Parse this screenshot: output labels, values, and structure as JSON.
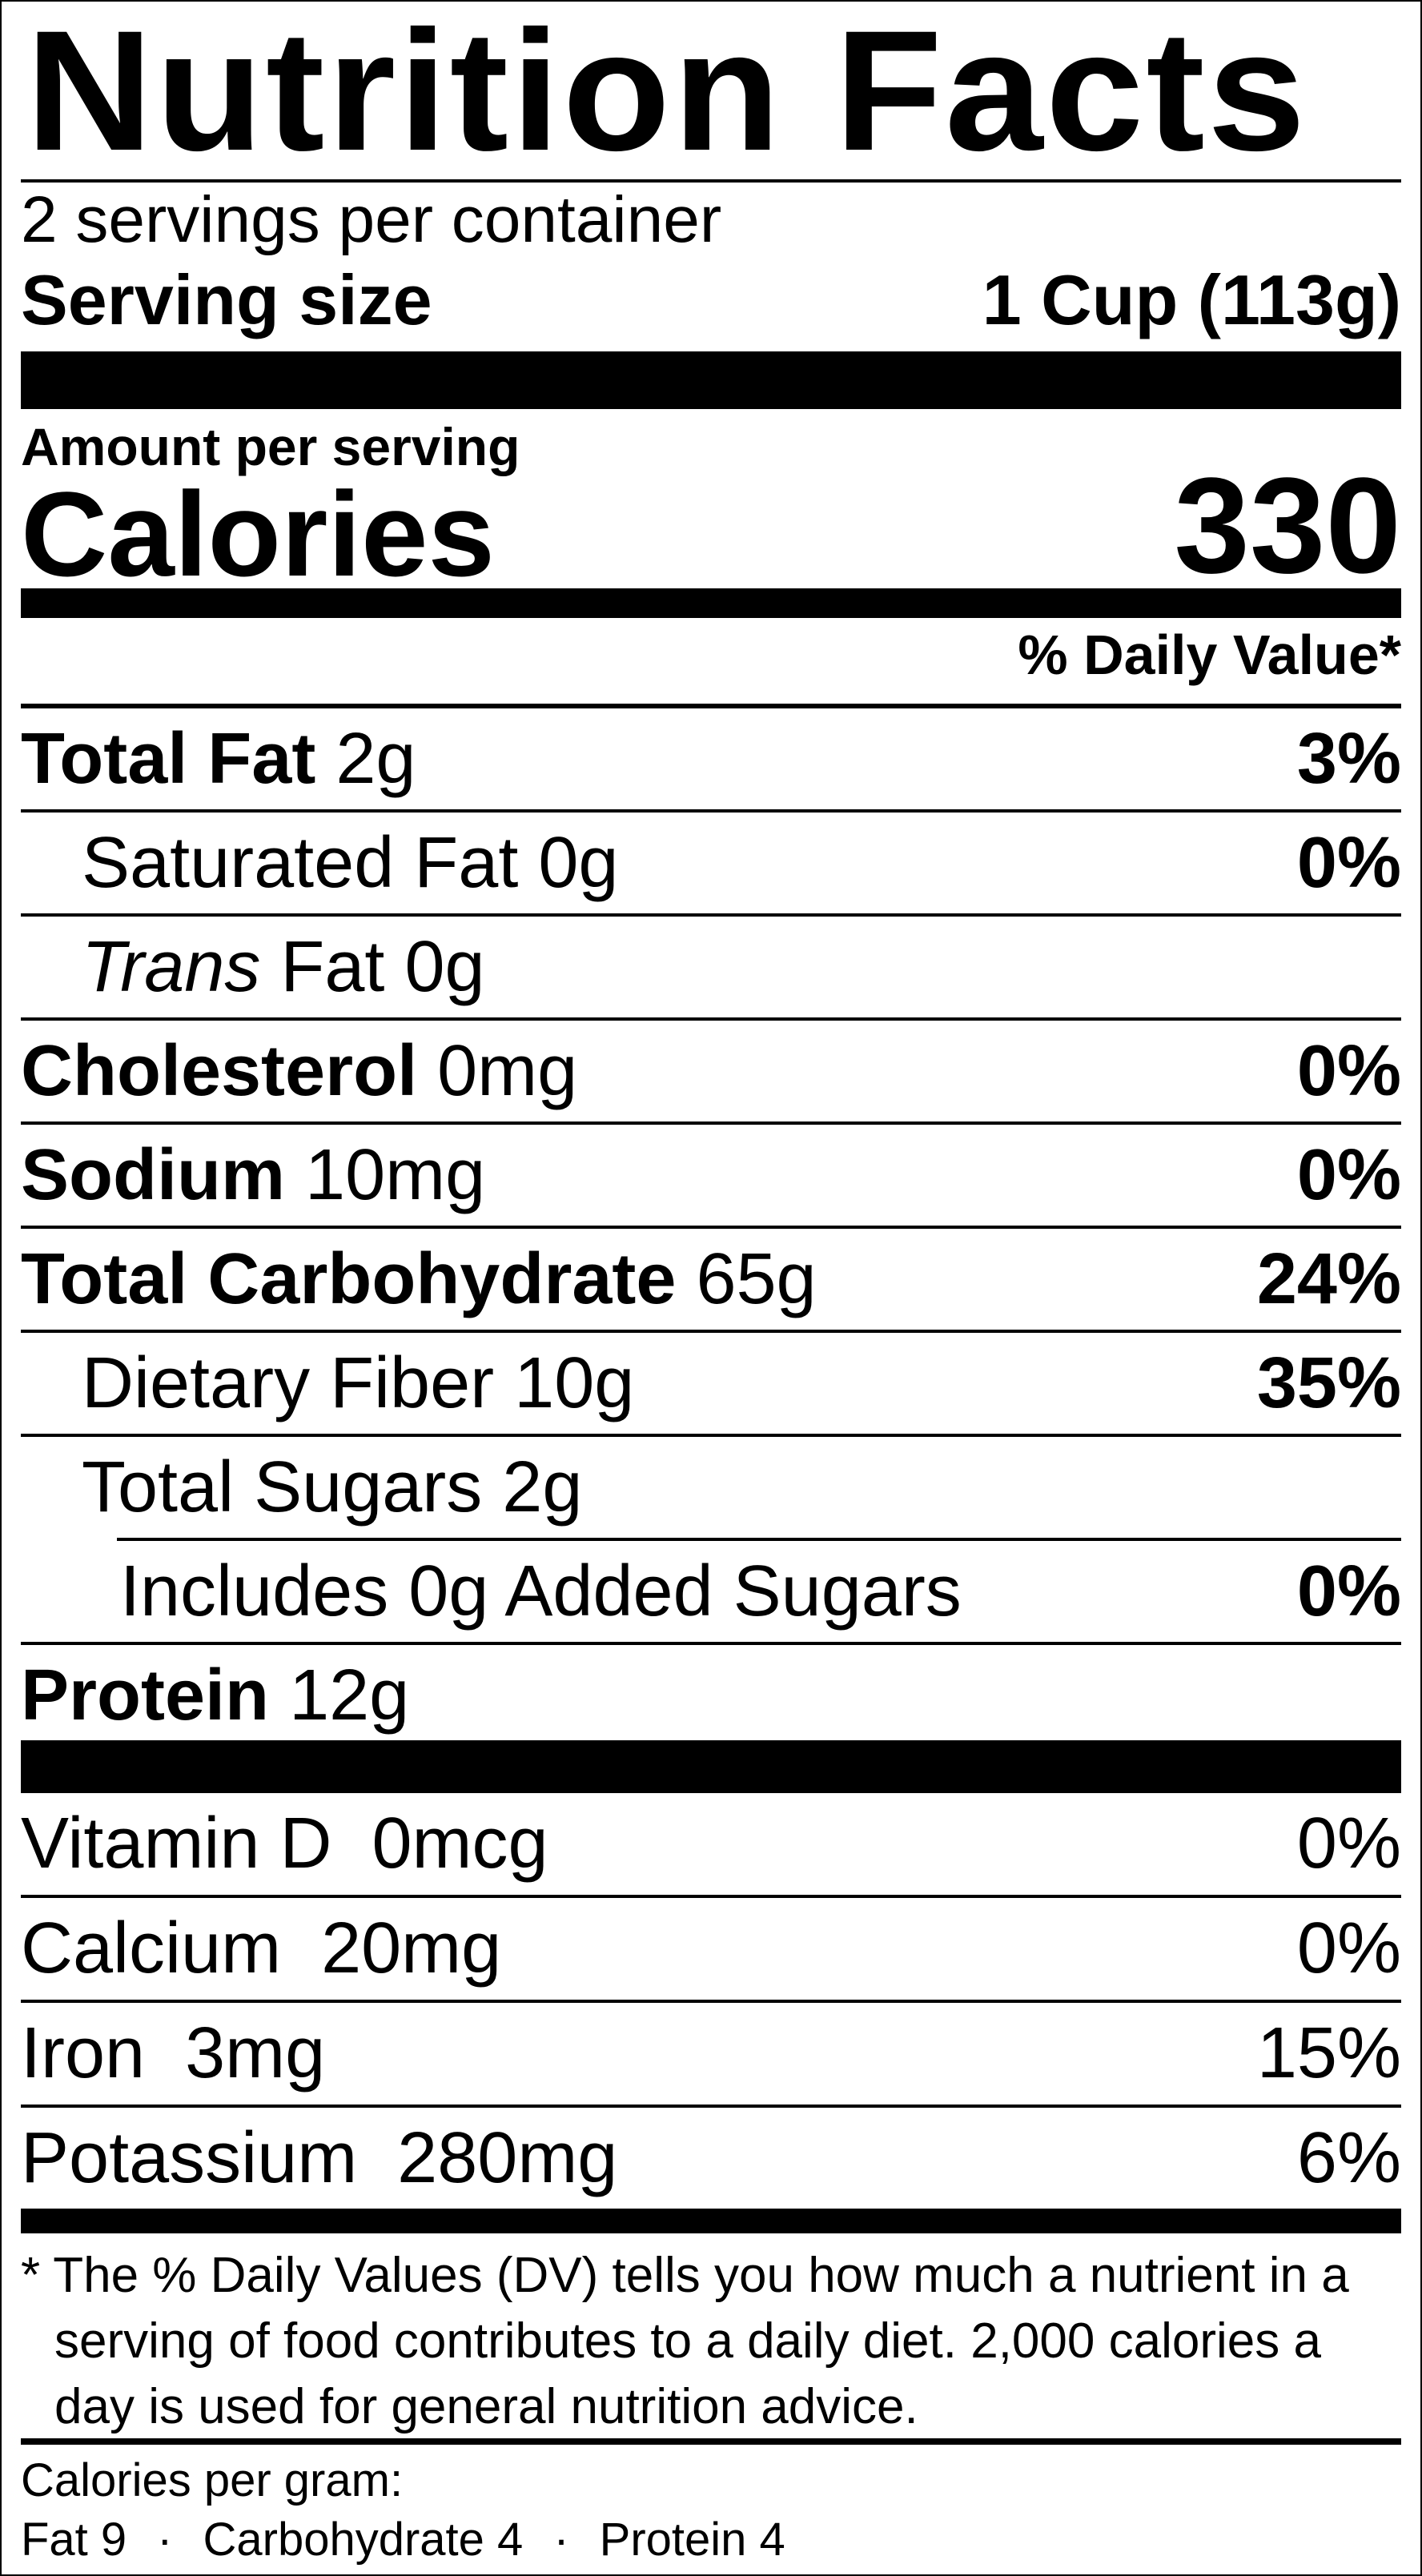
{
  "title": "Nutrition Facts",
  "servings_per_container": "2 servings per container",
  "serving_size": {
    "label": "Serving size",
    "value": "1 Cup (113g)"
  },
  "amount_per_serving": "Amount per serving",
  "calories": {
    "label": "Calories",
    "value": "330"
  },
  "daily_value_header": "% Daily Value*",
  "nutrients": [
    {
      "name": "Total Fat",
      "amount": "2g",
      "dv": "3%"
    },
    {
      "name": "Saturated Fat",
      "amount": "0g",
      "dv": "0%"
    },
    {
      "name": "Trans",
      "name_suffix": "Fat",
      "amount": "0g",
      "dv": ""
    },
    {
      "name": "Cholesterol",
      "amount": "0mg",
      "dv": "0%"
    },
    {
      "name": "Sodium",
      "amount": "10mg",
      "dv": "0%"
    },
    {
      "name": "Total Carbohydrate",
      "amount": "65g",
      "dv": "24%"
    },
    {
      "name": "Dietary Fiber",
      "amount": "10g",
      "dv": "35%"
    },
    {
      "name": "Total Sugars",
      "amount": "2g",
      "dv": ""
    },
    {
      "name": "Includes",
      "amount": "0g",
      "name_suffix": "Added Sugars",
      "dv": "0%"
    },
    {
      "name": "Protein",
      "amount": "12g",
      "dv": ""
    }
  ],
  "vitamins": [
    {
      "text": "Vitamin D  0mcg",
      "dv": "0%"
    },
    {
      "text": "Calcium  20mg",
      "dv": "0%"
    },
    {
      "text": "Iron  3mg",
      "dv": "15%"
    },
    {
      "text": "Potassium  280mg",
      "dv": "6%"
    }
  ],
  "footnote": [
    "* The % Daily Values (DV) tells you how much a nutrient in a",
    "serving of food contributes to a daily diet. 2,000 calories a",
    "day is used for general nutrition advice."
  ],
  "calories_per_gram": {
    "label": "Calories per gram:",
    "fat": "Fat 9",
    "carbohydrate": "Carbohydrate 4",
    "protein": "Protein 4",
    "separator": "·"
  }
}
